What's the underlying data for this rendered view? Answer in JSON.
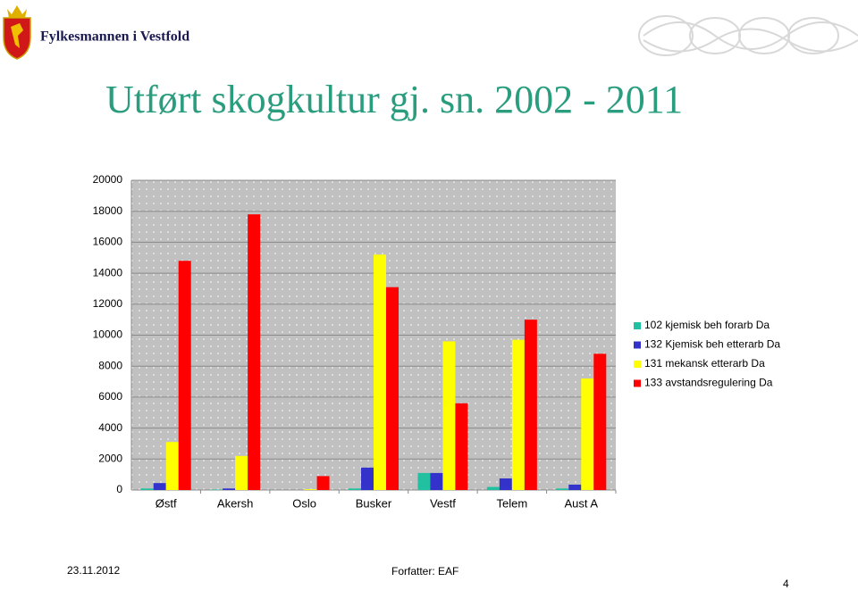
{
  "header": {
    "org": "Fylkesmannen i Vestfold"
  },
  "chart_data": {
    "type": "bar",
    "title": "Utført skogkultur gj. sn. 2002 - 2011",
    "categories": [
      "Østf",
      "Akersh",
      "Oslo",
      "Busker",
      "Vestf",
      "Telem",
      "Aust A"
    ],
    "series": [
      {
        "name": "102 kjemisk beh forarb Da",
        "color": "#20c0a0",
        "values": [
          100,
          30,
          0,
          100,
          1100,
          200,
          100
        ]
      },
      {
        "name": "132 Kjemisk beh etterarb Da",
        "color": "#3333cc",
        "values": [
          450,
          100,
          0,
          1450,
          1100,
          750,
          350
        ]
      },
      {
        "name": "131 mekansk etterarb Da",
        "color": "#ffff00",
        "values": [
          3100,
          2200,
          50,
          15200,
          9600,
          9700,
          7200
        ]
      },
      {
        "name": "133 avstandsregulering Da",
        "color": "#ff0000",
        "values": [
          14800,
          17800,
          900,
          13100,
          5600,
          11000,
          8800
        ]
      }
    ],
    "ylim": [
      0,
      20000
    ],
    "yticks": [
      0,
      2000,
      4000,
      6000,
      8000,
      10000,
      12000,
      14000,
      16000,
      18000,
      20000
    ],
    "grid": true,
    "legend": "right"
  },
  "footer": {
    "date": "23.11.2012",
    "author": "Forfatter: EAF",
    "page": "4"
  }
}
